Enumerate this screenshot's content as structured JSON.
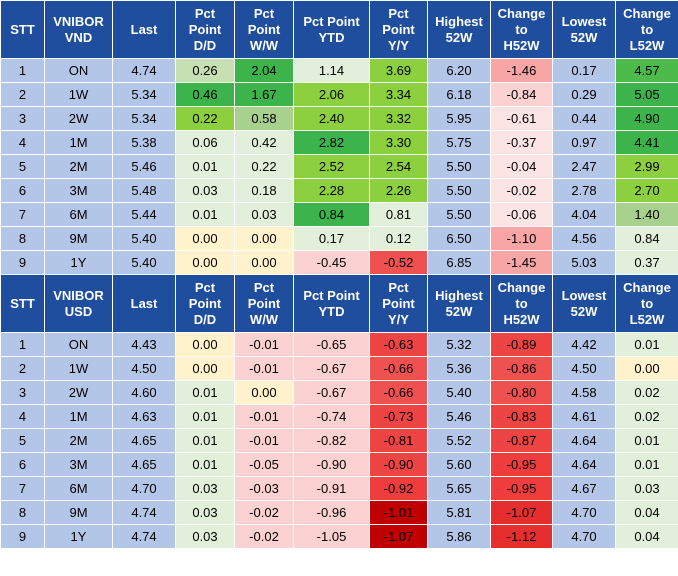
{
  "vnd": {
    "headers": [
      "STT",
      "VNIBOR\nVND",
      "Last",
      "Pct\nPoint\nD/D",
      "Pct\nPoint\nW/W",
      "Pct Point\nYTD",
      "Pct\nPoint\nY/Y",
      "Highest\n52W",
      "Change\nto\nH52W",
      "Lowest\n52W",
      "Change\nto\nL52W"
    ],
    "rows": [
      {
        "stt": "1",
        "tenor": "ON",
        "last": "4.74",
        "dd": "0.26",
        "ww": "2.04",
        "ytd": "1.14",
        "yy": "3.69",
        "h52": "6.20",
        "ch52": "-1.46",
        "l52": "0.17",
        "cl52": "4.57"
      },
      {
        "stt": "2",
        "tenor": "1W",
        "last": "5.34",
        "dd": "0.46",
        "ww": "1.67",
        "ytd": "2.06",
        "yy": "3.34",
        "h52": "6.18",
        "ch52": "-0.84",
        "l52": "0.29",
        "cl52": "5.05"
      },
      {
        "stt": "3",
        "tenor": "2W",
        "last": "5.34",
        "dd": "0.22",
        "ww": "0.58",
        "ytd": "2.40",
        "yy": "3.32",
        "h52": "5.95",
        "ch52": "-0.61",
        "l52": "0.44",
        "cl52": "4.90"
      },
      {
        "stt": "4",
        "tenor": "1M",
        "last": "5.38",
        "dd": "0.06",
        "ww": "0.42",
        "ytd": "2.82",
        "yy": "3.30",
        "h52": "5.75",
        "ch52": "-0.37",
        "l52": "0.97",
        "cl52": "4.41"
      },
      {
        "stt": "5",
        "tenor": "2M",
        "last": "5.46",
        "dd": "0.01",
        "ww": "0.22",
        "ytd": "2.52",
        "yy": "2.54",
        "h52": "5.50",
        "ch52": "-0.04",
        "l52": "2.47",
        "cl52": "2.99"
      },
      {
        "stt": "6",
        "tenor": "3M",
        "last": "5.48",
        "dd": "0.03",
        "ww": "0.18",
        "ytd": "2.28",
        "yy": "2.26",
        "h52": "5.50",
        "ch52": "-0.02",
        "l52": "2.78",
        "cl52": "2.70"
      },
      {
        "stt": "7",
        "tenor": "6M",
        "last": "5.44",
        "dd": "0.01",
        "ww": "0.03",
        "ytd": "0.84",
        "yy": "0.81",
        "h52": "5.50",
        "ch52": "-0.06",
        "l52": "4.04",
        "cl52": "1.40"
      },
      {
        "stt": "8",
        "tenor": "9M",
        "last": "5.40",
        "dd": "0.00",
        "ww": "0.00",
        "ytd": "0.17",
        "yy": "0.12",
        "h52": "6.50",
        "ch52": "-1.10",
        "l52": "4.56",
        "cl52": "0.84"
      },
      {
        "stt": "9",
        "tenor": "1Y",
        "last": "5.40",
        "dd": "0.00",
        "ww": "0.00",
        "ytd": "-0.45",
        "yy": "-0.52",
        "h52": "6.85",
        "ch52": "-1.45",
        "l52": "5.03",
        "cl52": "0.37"
      }
    ],
    "colors": [
      {
        "dd": "#c6e0b4",
        "ww": "#3cb44b",
        "ytd": "#e2efda",
        "yy": "#8ccf3f",
        "ch52": "#f8a5a5",
        "cl52": "#4cbb4c"
      },
      {
        "dd": "#3cb44b",
        "ww": "#3cb44b",
        "ytd": "#8ccf3f",
        "yy": "#8ccf3f",
        "ch52": "#fbd1d1",
        "cl52": "#3cb44b"
      },
      {
        "dd": "#8ccf3f",
        "ww": "#a9d18e",
        "ytd": "#8ccf3f",
        "yy": "#8ccf3f",
        "ch52": "#fce4e4",
        "cl52": "#3cb44b"
      },
      {
        "dd": "#e2efda",
        "ww": "#e2efda",
        "ytd": "#3cb44b",
        "yy": "#8ccf3f",
        "ch52": "#fce4e4",
        "cl52": "#3cb44b"
      },
      {
        "dd": "#e2efda",
        "ww": "#e2efda",
        "ytd": "#8ccf3f",
        "yy": "#8ccf3f",
        "ch52": "#fce4e4",
        "cl52": "#8ccf3f"
      },
      {
        "dd": "#e2efda",
        "ww": "#e2efda",
        "ytd": "#8ccf3f",
        "yy": "#8ccf3f",
        "ch52": "#fce4e4",
        "cl52": "#8ccf3f"
      },
      {
        "dd": "#e2efda",
        "ww": "#e2efda",
        "ytd": "#3cb44b",
        "yy": "#e2efda",
        "ch52": "#fce4e4",
        "cl52": "#a9d18e"
      },
      {
        "dd": "#fff2cc",
        "ww": "#fff2cc",
        "ytd": "#e2efda",
        "yy": "#e2efda",
        "ch52": "#f8a5a5",
        "cl52": "#e2efda"
      },
      {
        "dd": "#fff2cc",
        "ww": "#fff2cc",
        "ytd": "#fbd1d1",
        "yy": "#ef5050",
        "ch52": "#f8a5a5",
        "cl52": "#e2efda"
      }
    ]
  },
  "usd": {
    "headers": [
      "STT",
      "VNIBOR\nUSD",
      "Last",
      "Pct\nPoint\nD/D",
      "Pct\nPoint\nW/W",
      "Pct Point\nYTD",
      "Pct\nPoint\nY/Y",
      "Highest\n52W",
      "Change\nto\nH52W",
      "Lowest\n52W",
      "Change\nto\nL52W"
    ],
    "rows": [
      {
        "stt": "1",
        "tenor": "ON",
        "last": "4.43",
        "dd": "0.00",
        "ww": "-0.01",
        "ytd": "-0.65",
        "yy": "-0.63",
        "h52": "5.32",
        "ch52": "-0.89",
        "l52": "4.42",
        "cl52": "0.01"
      },
      {
        "stt": "2",
        "tenor": "1W",
        "last": "4.50",
        "dd": "0.00",
        "ww": "-0.01",
        "ytd": "-0.67",
        "yy": "-0.66",
        "h52": "5.36",
        "ch52": "-0.86",
        "l52": "4.50",
        "cl52": "0.00"
      },
      {
        "stt": "3",
        "tenor": "2W",
        "last": "4.60",
        "dd": "0.01",
        "ww": "0.00",
        "ytd": "-0.67",
        "yy": "-0.66",
        "h52": "5.40",
        "ch52": "-0.80",
        "l52": "4.58",
        "cl52": "0.02"
      },
      {
        "stt": "4",
        "tenor": "1M",
        "last": "4.63",
        "dd": "0.01",
        "ww": "-0.01",
        "ytd": "-0.74",
        "yy": "-0.73",
        "h52": "5.46",
        "ch52": "-0.83",
        "l52": "4.61",
        "cl52": "0.02"
      },
      {
        "stt": "5",
        "tenor": "2M",
        "last": "4.65",
        "dd": "0.01",
        "ww": "-0.01",
        "ytd": "-0.82",
        "yy": "-0.81",
        "h52": "5.52",
        "ch52": "-0.87",
        "l52": "4.64",
        "cl52": "0.01"
      },
      {
        "stt": "6",
        "tenor": "3M",
        "last": "4.65",
        "dd": "0.01",
        "ww": "-0.05",
        "ytd": "-0.90",
        "yy": "-0.90",
        "h52": "5.60",
        "ch52": "-0.95",
        "l52": "4.64",
        "cl52": "0.01"
      },
      {
        "stt": "7",
        "tenor": "6M",
        "last": "4.70",
        "dd": "0.03",
        "ww": "-0.03",
        "ytd": "-0.91",
        "yy": "-0.92",
        "h52": "5.65",
        "ch52": "-0.95",
        "l52": "4.67",
        "cl52": "0.03"
      },
      {
        "stt": "8",
        "tenor": "9M",
        "last": "4.74",
        "dd": "0.03",
        "ww": "-0.02",
        "ytd": "-0.96",
        "yy": "-1.01",
        "h52": "5.81",
        "ch52": "-1.07",
        "l52": "4.70",
        "cl52": "0.04"
      },
      {
        "stt": "9",
        "tenor": "1Y",
        "last": "4.74",
        "dd": "0.03",
        "ww": "-0.02",
        "ytd": "-1.05",
        "yy": "-1.07",
        "h52": "5.86",
        "ch52": "-1.12",
        "l52": "4.70",
        "cl52": "0.04"
      }
    ],
    "colors": [
      {
        "dd": "#fff2cc",
        "ww": "#fbd1d1",
        "ytd": "#fbd1d1",
        "yy": "#ef4444",
        "ch52": "#ef4444",
        "cl52": "#e2efda"
      },
      {
        "dd": "#fff2cc",
        "ww": "#fbd1d1",
        "ytd": "#fbd1d1",
        "yy": "#ef5050",
        "ch52": "#ef5050",
        "cl52": "#fff2cc"
      },
      {
        "dd": "#e2efda",
        "ww": "#fff2cc",
        "ytd": "#fbd1d1",
        "yy": "#ef5050",
        "ch52": "#ef5050",
        "cl52": "#e2efda"
      },
      {
        "dd": "#e2efda",
        "ww": "#fbd1d1",
        "ytd": "#fbd1d1",
        "yy": "#ef4444",
        "ch52": "#ef4444",
        "cl52": "#e2efda"
      },
      {
        "dd": "#e2efda",
        "ww": "#fbd1d1",
        "ytd": "#fbd1d1",
        "yy": "#ef4444",
        "ch52": "#ef4444",
        "cl52": "#e2efda"
      },
      {
        "dd": "#e2efda",
        "ww": "#fbd1d1",
        "ytd": "#fbd1d1",
        "yy": "#ef4444",
        "ch52": "#ef3c3c",
        "cl52": "#e2efda"
      },
      {
        "dd": "#e2efda",
        "ww": "#fbd1d1",
        "ytd": "#fbd1d1",
        "yy": "#ef3c3c",
        "ch52": "#ef3c3c",
        "cl52": "#e2efda"
      },
      {
        "dd": "#e2efda",
        "ww": "#fbd1d1",
        "ytd": "#fbd1d1",
        "yy": "#c00000",
        "ch52": "#e62e2e",
        "cl52": "#e2efda"
      },
      {
        "dd": "#e2efda",
        "ww": "#fbd1d1",
        "ytd": "#fbd1d1",
        "yy": "#c00000",
        "ch52": "#e62e2e",
        "cl52": "#e2efda"
      }
    ]
  }
}
